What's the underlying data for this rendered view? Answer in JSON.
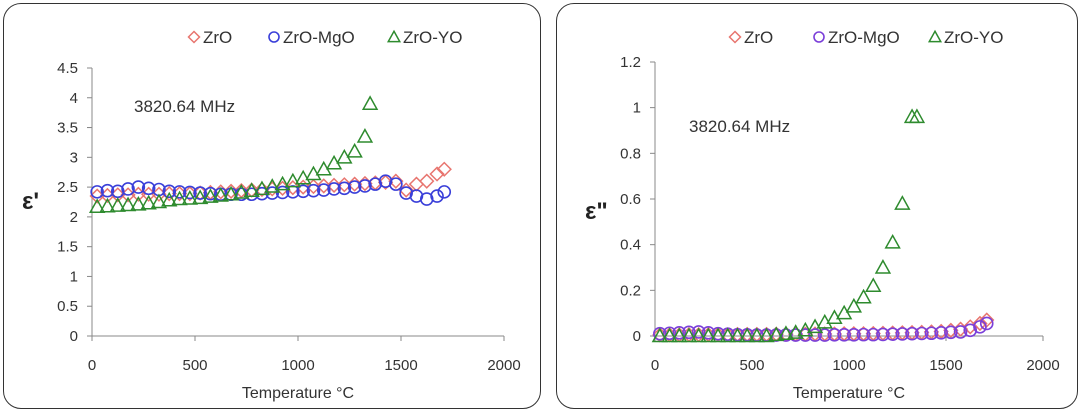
{
  "chart_data": [
    {
      "type": "scatter",
      "title": "",
      "xlabel": "Temperature °C",
      "ylabel": "ε'",
      "annotation": "3820.64  MHz",
      "xlim": [
        0,
        2000
      ],
      "ylim": [
        0,
        4.5
      ],
      "xticks": [
        "0",
        "500",
        "1000",
        "1500",
        "2000"
      ],
      "yticks": [
        "0",
        "0.5",
        "1",
        "1.5",
        "2",
        "2.5",
        "3",
        "3.5",
        "4",
        "4.5"
      ],
      "legend_position": "top",
      "series": [
        {
          "name": "ZrO",
          "marker": "diamond",
          "color": "#e8756f",
          "x": [
            25,
            75,
            125,
            175,
            225,
            275,
            325,
            375,
            425,
            475,
            525,
            575,
            625,
            675,
            725,
            775,
            825,
            875,
            925,
            975,
            1025,
            1075,
            1125,
            1175,
            1225,
            1275,
            1325,
            1375,
            1425,
            1475,
            1525,
            1575,
            1625,
            1675,
            1710
          ],
          "y": [
            2.35,
            2.36,
            2.37,
            2.37,
            2.38,
            2.38,
            2.38,
            2.39,
            2.39,
            2.39,
            2.4,
            2.41,
            2.42,
            2.43,
            2.44,
            2.45,
            2.46,
            2.47,
            2.48,
            2.49,
            2.5,
            2.51,
            2.52,
            2.53,
            2.54,
            2.55,
            2.56,
            2.57,
            2.58,
            2.6,
            2.45,
            2.55,
            2.6,
            2.72,
            2.8
          ]
        },
        {
          "name": "ZrO-MgO",
          "marker": "circle",
          "color": "#3a3fd9",
          "x": [
            25,
            75,
            125,
            175,
            225,
            275,
            325,
            375,
            425,
            475,
            525,
            575,
            625,
            675,
            725,
            775,
            825,
            875,
            925,
            975,
            1025,
            1075,
            1125,
            1175,
            1225,
            1275,
            1325,
            1375,
            1425,
            1475,
            1525,
            1575,
            1625,
            1675,
            1710
          ],
          "y": [
            2.42,
            2.44,
            2.43,
            2.47,
            2.5,
            2.48,
            2.46,
            2.43,
            2.42,
            2.41,
            2.4,
            2.39,
            2.38,
            2.38,
            2.38,
            2.38,
            2.39,
            2.4,
            2.41,
            2.42,
            2.43,
            2.44,
            2.45,
            2.47,
            2.48,
            2.5,
            2.52,
            2.55,
            2.6,
            2.55,
            2.4,
            2.35,
            2.3,
            2.35,
            2.42
          ]
        },
        {
          "name": "ZrO-YO",
          "marker": "triangle",
          "color": "#2e8b2e",
          "x": [
            25,
            75,
            125,
            175,
            225,
            275,
            325,
            375,
            425,
            475,
            525,
            575,
            625,
            675,
            725,
            775,
            825,
            875,
            925,
            975,
            1025,
            1075,
            1125,
            1175,
            1225,
            1275,
            1325,
            1350
          ],
          "y": [
            2.17,
            2.18,
            2.19,
            2.2,
            2.21,
            2.23,
            2.25,
            2.28,
            2.3,
            2.31,
            2.32,
            2.34,
            2.36,
            2.38,
            2.41,
            2.44,
            2.47,
            2.51,
            2.55,
            2.6,
            2.65,
            2.72,
            2.8,
            2.9,
            3.0,
            3.1,
            3.35,
            3.9
          ]
        }
      ]
    },
    {
      "type": "scatter",
      "title": "",
      "xlabel": "Temperature °C",
      "ylabel": "ε\"",
      "annotation": "3820.64  MHz",
      "xlim": [
        0,
        2000
      ],
      "ylim": [
        0,
        1.2
      ],
      "xticks": [
        "0",
        "500",
        "1000",
        "1500",
        "2000"
      ],
      "yticks": [
        "0",
        "0.2",
        "0.4",
        "0.6",
        "0.8",
        "1",
        "1.2"
      ],
      "legend_position": "top",
      "series": [
        {
          "name": "ZrO",
          "marker": "diamond",
          "color": "#e8756f",
          "x": [
            25,
            75,
            125,
            175,
            225,
            275,
            325,
            375,
            425,
            475,
            525,
            575,
            625,
            675,
            725,
            775,
            825,
            875,
            925,
            975,
            1025,
            1075,
            1125,
            1175,
            1225,
            1275,
            1325,
            1375,
            1425,
            1475,
            1525,
            1575,
            1625,
            1675,
            1710
          ],
          "y": [
            0.005,
            0.005,
            0.005,
            0.006,
            0.006,
            0.006,
            0.006,
            0.006,
            0.007,
            0.007,
            0.007,
            0.007,
            0.008,
            0.008,
            0.008,
            0.008,
            0.009,
            0.009,
            0.009,
            0.01,
            0.01,
            0.01,
            0.011,
            0.012,
            0.013,
            0.014,
            0.015,
            0.016,
            0.018,
            0.02,
            0.025,
            0.03,
            0.04,
            0.055,
            0.07
          ]
        },
        {
          "name": "ZrO-MgO",
          "marker": "circle",
          "color": "#7b3fd9",
          "x": [
            25,
            75,
            125,
            175,
            225,
            275,
            325,
            375,
            425,
            475,
            525,
            575,
            625,
            675,
            725,
            775,
            825,
            875,
            925,
            975,
            1025,
            1075,
            1125,
            1175,
            1225,
            1275,
            1325,
            1375,
            1425,
            1475,
            1525,
            1575,
            1625,
            1675,
            1710
          ],
          "y": [
            0.01,
            0.012,
            0.014,
            0.016,
            0.018,
            0.014,
            0.01,
            0.008,
            0.006,
            0.005,
            0.004,
            0.004,
            0.004,
            0.004,
            0.004,
            0.004,
            0.004,
            0.004,
            0.005,
            0.005,
            0.005,
            0.006,
            0.006,
            0.007,
            0.008,
            0.009,
            0.01,
            0.011,
            0.012,
            0.014,
            0.016,
            0.018,
            0.025,
            0.04,
            0.055
          ]
        },
        {
          "name": "ZrO-YO",
          "marker": "triangle",
          "color": "#2e8b2e",
          "x": [
            25,
            75,
            125,
            175,
            225,
            275,
            325,
            375,
            425,
            475,
            525,
            575,
            625,
            675,
            725,
            775,
            825,
            875,
            925,
            975,
            1025,
            1075,
            1125,
            1175,
            1225,
            1275,
            1325,
            1350
          ],
          "y": [
            0.0,
            0.0,
            0.0,
            0.0,
            0.0,
            0.0,
            0.0,
            0.0,
            0.0,
            0.0,
            0.0,
            0.0,
            0.005,
            0.01,
            0.015,
            0.025,
            0.04,
            0.06,
            0.08,
            0.1,
            0.13,
            0.17,
            0.22,
            0.3,
            0.41,
            0.58,
            0.96,
            0.96
          ]
        }
      ]
    }
  ]
}
